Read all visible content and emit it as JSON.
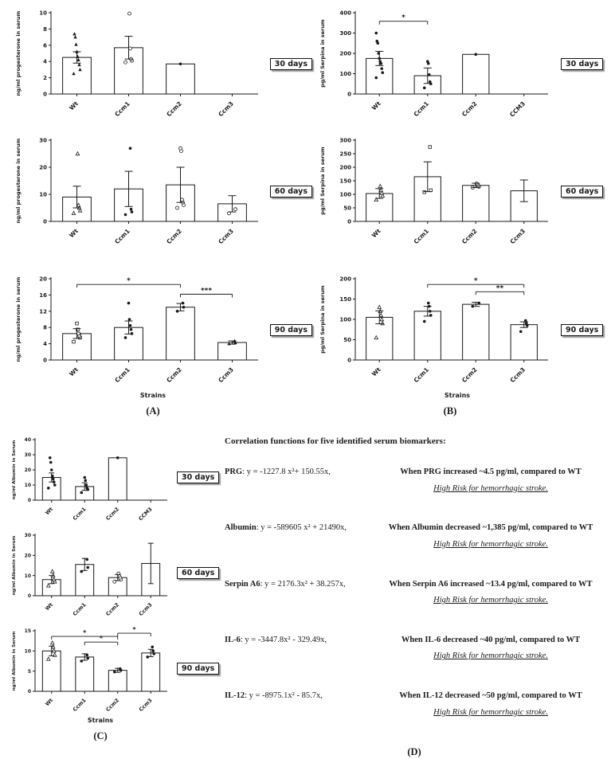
{
  "chart_data": {
    "type": "bar",
    "panels": [
      {
        "id": "A",
        "label": "(A)",
        "ylabel": "ng/ml progesterone in serum",
        "xlabel": "Strains",
        "charts": [
          {
            "day_label": "30 days",
            "ylim": [
              0,
              10
            ],
            "yticks": [
              0,
              2,
              4,
              6,
              8,
              10
            ],
            "categories": [
              "Wt",
              "Ccm1",
              "Ccm2",
              "Ccm3"
            ],
            "means": [
              4.5,
              5.7,
              3.7,
              0
            ],
            "errors": [
              0.7,
              1.4,
              0,
              0
            ],
            "points": [
              [
                2.5,
                3.0,
                3.6,
                4.2,
                4.6,
                5.2,
                6.1,
                7.0,
                7.4
              ],
              [
                3.9,
                4.1,
                4.3,
                5.6,
                9.9
              ],
              [
                3.7
              ],
              []
            ],
            "markers": [
              "triangle",
              "circle-open",
              "dot",
              "dot"
            ],
            "sig": []
          },
          {
            "day_label": "60 days",
            "ylim": [
              0,
              30
            ],
            "yticks": [
              0,
              10,
              20,
              30
            ],
            "categories": [
              "Wt",
              "Ccm1",
              "Ccm2",
              "Ccm3"
            ],
            "means": [
              9,
              12,
              13.5,
              6.5
            ],
            "errors": [
              4,
              6.5,
              6.5,
              3
            ],
            "points": [
              [
                3,
                4,
                5,
                6,
                25
              ],
              [
                2.5,
                3.5,
                4.5,
                27
              ],
              [
                5,
                6,
                7,
                8,
                26,
                27
              ],
              [
                3,
                4.5
              ]
            ],
            "markers": [
              "triangle-open",
              "dot",
              "circle-open",
              "circle-open"
            ],
            "sig": []
          },
          {
            "day_label": "90 days",
            "ylim": [
              0,
              20
            ],
            "yticks": [
              0,
              4,
              8,
              12,
              16,
              20
            ],
            "categories": [
              "Wt",
              "Ccm1",
              "Ccm2",
              "Ccm3"
            ],
            "means": [
              6.5,
              8,
              13,
              4.3
            ],
            "errors": [
              1.2,
              1.6,
              0.9,
              0.4
            ],
            "points": [
              [
                4.5,
                5.5,
                6,
                6.5,
                7.5,
                9
              ],
              [
                5.5,
                6.5,
                7.5,
                8.5,
                10,
                14
              ],
              [
                12,
                13,
                14
              ],
              [
                4,
                4.3,
                4.7
              ]
            ],
            "markers": [
              "square-open",
              "dot",
              "dot",
              "triangle"
            ],
            "sig": [
              {
                "from": 0,
                "to": 2,
                "label": "*",
                "y": 18.6
              },
              {
                "from": 2,
                "to": 3,
                "label": "***",
                "y": 16.2
              }
            ]
          }
        ]
      },
      {
        "id": "B",
        "label": "(B)",
        "ylabel": "pg/ml Serpina in serum",
        "xlabel": "Strains",
        "charts": [
          {
            "day_label": "30 days",
            "ylim": [
              0,
              400
            ],
            "yticks": [
              0,
              100,
              200,
              300,
              400
            ],
            "categories": [
              "Wt",
              "Ccm1",
              "Ccm2",
              "CCM3"
            ],
            "means": [
              175,
              90,
              195,
              0
            ],
            "errors": [
              35,
              38,
              0,
              0
            ],
            "points": [
              [
                80,
                105,
                125,
                150,
                160,
                175,
                200,
                250,
                260,
                300
              ],
              [
                30,
                50,
                60,
                95,
                150,
                160
              ],
              [
                195
              ],
              []
            ],
            "markers": [
              "dot",
              "dot",
              "dot",
              "dot"
            ],
            "sig": [
              {
                "from": 0,
                "to": 1,
                "label": "*",
                "y": 358
              }
            ]
          },
          {
            "day_label": "60 days",
            "ylim": [
              0,
              300
            ],
            "yticks": [
              0,
              50,
              100,
              150,
              200,
              250,
              300
            ],
            "categories": [
              "Wt",
              "Ccm1",
              "Ccm2",
              "Ccm3"
            ],
            "means": [
              103,
              165,
              133,
              113
            ],
            "errors": [
              18,
              55,
              8,
              40
            ],
            "points": [
              [
                80,
                95,
                105,
                115,
                130
              ],
              [
                108,
                115,
                275
              ],
              [
                125,
                128,
                132,
                136,
                140
              ],
              []
            ],
            "markers": [
              "triangle-open",
              "square-open",
              "circle-open",
              "dot"
            ],
            "sig": []
          },
          {
            "day_label": "90 days",
            "ylim": [
              0,
              200
            ],
            "yticks": [
              0,
              50,
              100,
              150,
              200
            ],
            "categories": [
              "Wt",
              "Ccm1",
              "Ccm2",
              "Ccm3"
            ],
            "means": [
              105,
              120,
              137,
              87
            ],
            "errors": [
              16,
              12,
              5,
              7
            ],
            "points": [
              [
                55,
                90,
                100,
                110,
                120,
                130
              ],
              [
                95,
                110,
                120,
                132,
                140
              ],
              [
                132,
                140
              ],
              [
                70,
                85,
                90,
                97
              ]
            ],
            "markers": [
              "triangle-open",
              "dot",
              "dot",
              "dot"
            ],
            "sig": [
              {
                "from": 1,
                "to": 3,
                "label": "*",
                "y": 186
              },
              {
                "from": 2,
                "to": 3,
                "label": "**",
                "y": 168
              }
            ]
          }
        ]
      },
      {
        "id": "C",
        "label": "(C)",
        "ylabel": "ng/ml Albumin in Serum",
        "xlabel": "Strains",
        "charts": [
          {
            "day_label": "30 days",
            "ylim": [
              0,
              40
            ],
            "yticks": [
              0,
              10,
              20,
              30,
              40
            ],
            "categories": [
              "Wt",
              "Ccm1",
              "Ccm2",
              "CCM3"
            ],
            "means": [
              15,
              9,
              28,
              0
            ],
            "errors": [
              3,
              2.5,
              0,
              0
            ],
            "points": [
              [
                8,
                10,
                12,
                14,
                16,
                20,
                25,
                28
              ],
              [
                5,
                7,
                8,
                10,
                13,
                15
              ],
              [
                28
              ],
              []
            ],
            "markers": [
              "dot",
              "dot",
              "dot",
              "dot"
            ],
            "sig": []
          },
          {
            "day_label": "60 days",
            "ylim": [
              0,
              30
            ],
            "yticks": [
              0,
              10,
              20,
              30
            ],
            "categories": [
              "Wt",
              "Ccm1",
              "Ccm2",
              "Ccm3"
            ],
            "means": [
              8,
              15.5,
              9,
              16
            ],
            "errors": [
              2,
              3,
              1.5,
              10
            ],
            "points": [
              [
                5,
                7,
                8,
                10,
                12
              ],
              [
                12,
                14,
                18
              ],
              [
                7,
                8,
                9,
                10,
                11
              ],
              []
            ],
            "markers": [
              "triangle-open",
              "dot",
              "circle-open",
              "dot"
            ],
            "sig": []
          },
          {
            "day_label": "90 days",
            "ylim": [
              0,
              15
            ],
            "yticks": [
              0,
              5,
              10,
              15
            ],
            "categories": [
              "Wt",
              "Ccm1",
              "Ccm2",
              "Ccm3"
            ],
            "means": [
              10,
              8.5,
              5.2,
              9.5
            ],
            "errors": [
              1.2,
              0.8,
              0.5,
              0.9
            ],
            "points": [
              [
                8,
                9,
                10,
                11,
                12
              ],
              [
                7.5,
                8.2,
                9
              ],
              [
                4.8,
                5.2,
                5.6
              ],
              [
                8.5,
                9.3,
                10,
                11
              ]
            ],
            "markers": [
              "triangle-open",
              "dot",
              "dot",
              "dot"
            ],
            "sig": [
              {
                "from": 0,
                "to": 2,
                "label": "*",
                "y": 13.6
              },
              {
                "from": 1,
                "to": 2,
                "label": "*",
                "y": 12.2
              },
              {
                "from": 2,
                "to": 3,
                "label": "*",
                "y": 14.4
              }
            ]
          }
        ]
      }
    ]
  },
  "d_panel": {
    "label": "(D)",
    "title": "Correlation functions for five identified serum biomarkers:",
    "rows": [
      {
        "name": "PRG",
        "eq": ":  y = -1227.8 x²+ 150.55x,",
        "cond": "When PRG increased ~4.5 pg/ml, compared to WT",
        "risk": "High Risk for hemorrhagic stroke."
      },
      {
        "name": "Albumin",
        "eq": ":  y = -589605 x² + 21490x,",
        "cond": "When Albumin decreased ~1,385 pg/ml, compared to WT",
        "risk": "High Risk for hemorrhagic stroke."
      },
      {
        "name": "Serpin A6",
        "eq": ": y = 2176.3x² + 38.257x,",
        "cond": "When Serpin A6 increased ~13.4 pg/ml, compared to WT",
        "risk": "High Risk for hemorrhagic stroke."
      },
      {
        "name": "IL-6",
        "eq": ": y = -3447.8x² - 329.49x,",
        "cond": "When IL-6 decreased ~40 pg/ml, compared to WT",
        "risk": "High Risk for hemorrhagic stroke."
      },
      {
        "name": "IL-12",
        "eq": ":   y = -8975.1x² - 85.7x,",
        "cond": "When IL-12 decreased ~50 pg/ml, compared to WT",
        "risk": "High Risk for hemorrhagic stroke."
      }
    ]
  }
}
